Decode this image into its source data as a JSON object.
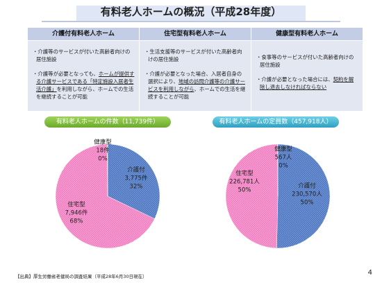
{
  "title": "有料老人ホームの概況（平成28年度）",
  "table": {
    "headers": [
      "介護付有料老人ホーム",
      "住宅型有料老人ホーム",
      "健康型有料老人ホーム"
    ],
    "cells": [
      [
        [
          "・介護等のサービスが付いた高齢者向けの居住施設"
        ],
        [
          "・介護等が必要となっても、",
          "ホームが提供する介護サービスである「特定施設入居者生活介護」",
          "を利用しながら、ホームでの生活を継続することが可能"
        ]
      ],
      [
        [
          "・生活支援等のサービスが付いた高齢者向けの居住施設"
        ],
        [
          "・介護が必要となった場合、入居者自身の選択により、",
          "地域の訪問介護等の介護サービスを利用しながら",
          "、ホームでの生活を継続することが可能"
        ]
      ],
      [
        [
          "・食事等のサービスが付いた高齢者向けの居住施設"
        ],
        [
          "・介護が必要となった場合には、",
          "契約を解除し退去しなければならない"
        ]
      ]
    ]
  },
  "chart_data": [
    {
      "type": "pie",
      "title": "有料老人ホームの件数（11,739件）",
      "categories": [
        "介護付",
        "住宅型",
        "健康型"
      ],
      "values": [
        3775,
        7946,
        18
      ],
      "value_labels": [
        "3,775件",
        "7,946件",
        "18件"
      ],
      "percent_labels": [
        "32%",
        "68%",
        "0%"
      ],
      "colors": [
        "#4f79c4",
        "#f47fc2",
        "#9aa3b5"
      ]
    },
    {
      "type": "pie",
      "title": "有料老人ホームの定員数（457,918人）",
      "categories": [
        "介護付",
        "住宅型",
        "健康型"
      ],
      "values": [
        230570,
        226781,
        567
      ],
      "value_labels": [
        "230,570人",
        "226,781人",
        "567人"
      ],
      "percent_labels": [
        "50%",
        "50%",
        "0%"
      ],
      "colors": [
        "#4f79c4",
        "#f47fc2",
        "#9aa3b5"
      ]
    }
  ],
  "footer": "【出典】厚生労働省老健局の調査結果（平成28年6月30日現在）",
  "page_number": "4"
}
